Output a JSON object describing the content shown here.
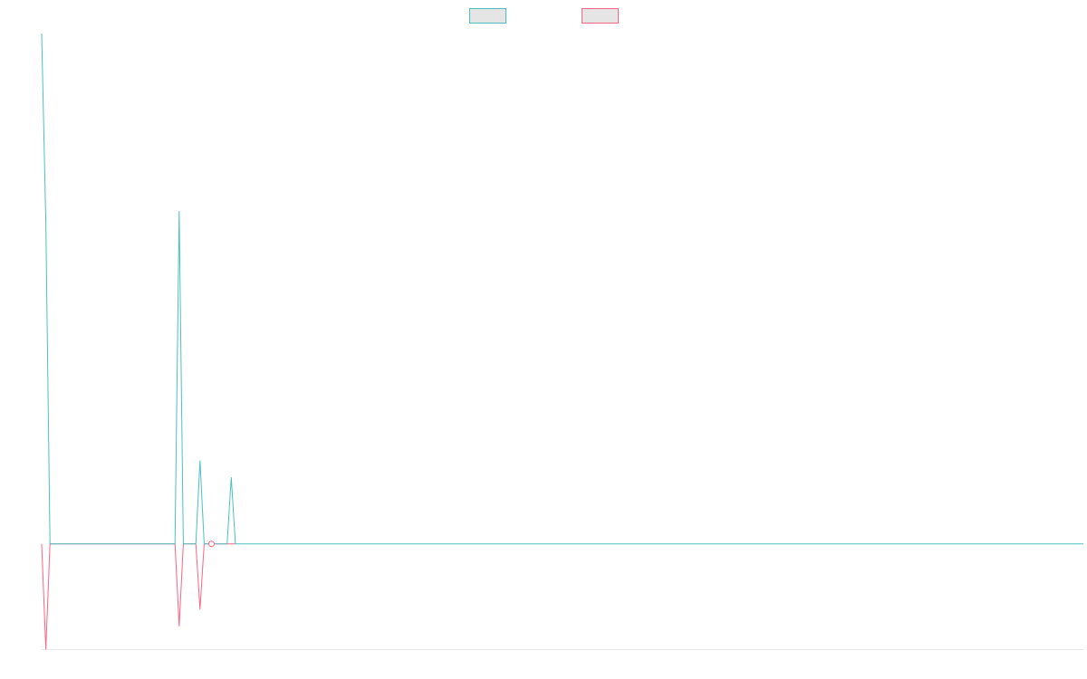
{
  "chart_data": {
    "type": "line",
    "title": "",
    "xlabel": "",
    "ylabel": "",
    "legend_position": "top-center",
    "grid": false,
    "ylim": [
      -1,
      4.85
    ],
    "series": [
      {
        "key": "positive",
        "name": "",
        "stroke": "#4bc0c0",
        "fill": "#e5e5e5",
        "points": [
          {
            "x": 0,
            "y": 4.85
          },
          {
            "x": 2,
            "y": 3.05
          },
          {
            "x": 4,
            "y": 0
          },
          {
            "x": 64,
            "y": 0
          },
          {
            "x": 66,
            "y": 3.16
          },
          {
            "x": 68,
            "y": 0
          },
          {
            "x": 74,
            "y": 0
          },
          {
            "x": 76,
            "y": 0.79
          },
          {
            "x": 78,
            "y": 0
          },
          {
            "x": 89,
            "y": 0
          },
          {
            "x": 91,
            "y": 0.63
          },
          {
            "x": 93,
            "y": 0
          },
          {
            "x": 500,
            "y": 0
          }
        ]
      },
      {
        "key": "negative",
        "name": "",
        "stroke": "#ff6384",
        "fill": "#e5e5e5",
        "points": [
          {
            "x": 0,
            "y": 0
          },
          {
            "x": 2,
            "y": -1
          },
          {
            "x": 4,
            "y": 0
          },
          {
            "x": 64,
            "y": 0
          },
          {
            "x": 66,
            "y": -0.78
          },
          {
            "x": 68,
            "y": 0
          },
          {
            "x": 74,
            "y": 0
          },
          {
            "x": 76,
            "y": -0.62
          },
          {
            "x": 78,
            "y": 0
          },
          {
            "x": 80.5,
            "y": 0
          },
          {
            "x": 81.5,
            "y": 0
          },
          {
            "x": 89,
            "y": 0
          },
          {
            "x": 91,
            "y": 0
          },
          {
            "x": 93,
            "y": 0
          }
        ]
      }
    ],
    "markers": [
      {
        "x": 81.5,
        "y": 0,
        "color": "#ff6384"
      }
    ],
    "xlim": [
      0,
      500
    ]
  }
}
